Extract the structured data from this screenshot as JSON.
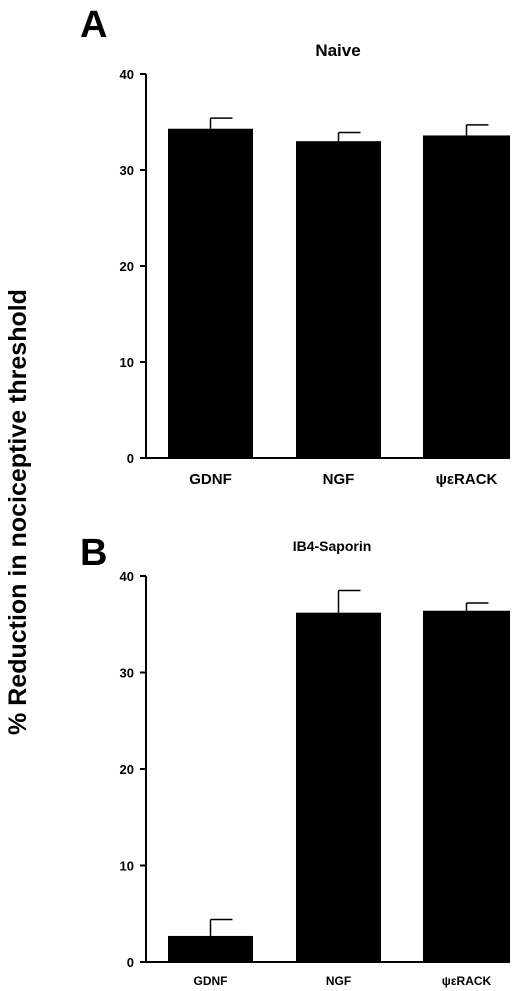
{
  "figure": {
    "ylabel": "% Reduction in nociceptive threshold"
  },
  "chart_data": [
    {
      "type": "bar",
      "panel": "A",
      "title": "Naive",
      "categories": [
        "GDNF",
        "NGF",
        "ψεRACK"
      ],
      "values": [
        34.3,
        33.0,
        33.6
      ],
      "errors": [
        1.1,
        0.9,
        1.1
      ],
      "ylim": [
        0,
        40
      ],
      "yticks": [
        0,
        10,
        20,
        30,
        40
      ],
      "xlabel": "",
      "ylabel": "% Reduction in nociceptive threshold",
      "bar_color": "#000000"
    },
    {
      "type": "bar",
      "panel": "B",
      "title": "IB4-Saporin",
      "categories": [
        "GDNF",
        "NGF",
        "ψεRACK"
      ],
      "values": [
        2.7,
        36.2,
        36.4
      ],
      "errors": [
        1.7,
        2.3,
        0.8
      ],
      "ylim": [
        0,
        40
      ],
      "yticks": [
        0,
        10,
        20,
        30,
        40
      ],
      "xlabel": "",
      "ylabel": "% Reduction in nociceptive threshold",
      "bar_color": "#000000"
    }
  ]
}
